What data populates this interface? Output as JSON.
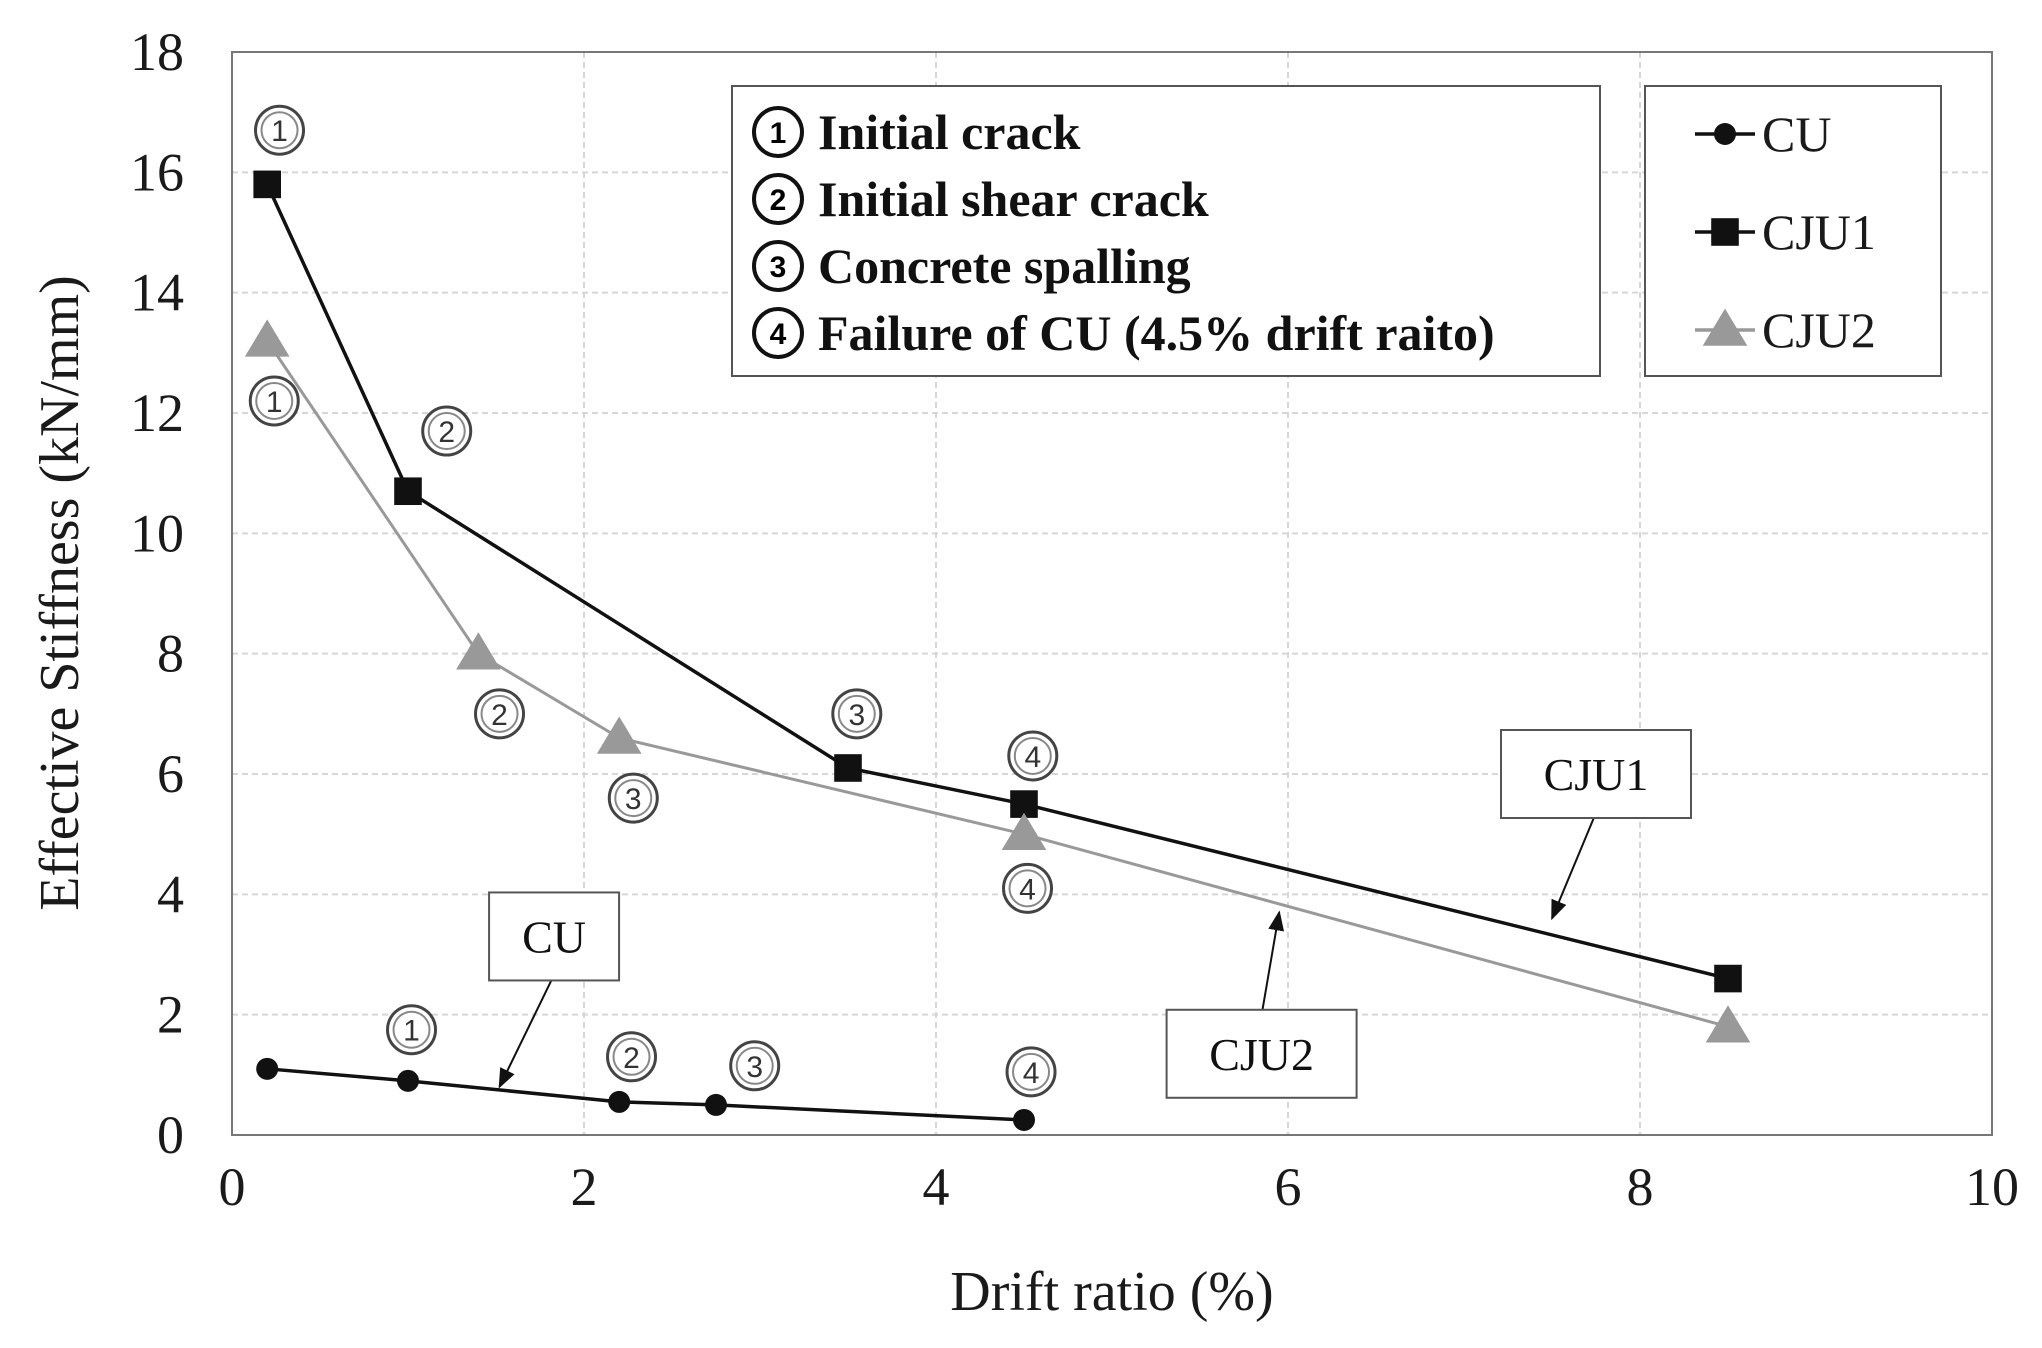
{
  "chart_data": {
    "type": "line",
    "title": "",
    "xlabel": "Drift ratio (%)",
    "ylabel": "Effective Stiffness (kN/mm)",
    "xlim": [
      0,
      10
    ],
    "ylim": [
      0,
      18
    ],
    "xticks": [
      "0",
      "2",
      "4",
      "6",
      "8",
      "10"
    ],
    "yticks": [
      "0",
      "2",
      "4",
      "6",
      "8",
      "10",
      "12",
      "14",
      "16",
      "18"
    ],
    "grid": true,
    "legend_position": "top-right",
    "series": [
      {
        "name": "CU",
        "marker": "circle",
        "color": "#111111",
        "x": [
          0.2,
          1.0,
          2.2,
          2.75,
          4.5
        ],
        "y": [
          1.1,
          0.9,
          0.55,
          0.5,
          0.25
        ]
      },
      {
        "name": "CJU1",
        "marker": "square",
        "color": "#111111",
        "x": [
          0.2,
          1.0,
          3.5,
          4.5,
          8.5
        ],
        "y": [
          15.8,
          10.7,
          6.1,
          5.5,
          2.6
        ]
      },
      {
        "name": "CJU2",
        "marker": "triangle",
        "color": "#999999",
        "x": [
          0.2,
          1.4,
          2.2,
          4.5,
          8.5
        ],
        "y": [
          13.2,
          8.0,
          6.6,
          5.0,
          1.8
        ]
      }
    ],
    "stage_notes": [
      {
        "num": "1",
        "text": "Initial crack"
      },
      {
        "num": "2",
        "text": "Initial shear crack"
      },
      {
        "num": "3",
        "text": "Concrete spalling"
      },
      {
        "num": "4",
        "text": "Failure of CU (4.5% drift raito)"
      }
    ],
    "point_annotations": [
      {
        "label": "1",
        "x": 0.27,
        "y": 16.7
      },
      {
        "label": "1",
        "x": 0.24,
        "y": 12.2
      },
      {
        "label": "2",
        "x": 1.22,
        "y": 11.7
      },
      {
        "label": "2",
        "x": 1.52,
        "y": 7.0
      },
      {
        "label": "3",
        "x": 3.55,
        "y": 7.0
      },
      {
        "label": "3",
        "x": 2.28,
        "y": 5.6
      },
      {
        "label": "4",
        "x": 4.55,
        "y": 6.3
      },
      {
        "label": "4",
        "x": 4.52,
        "y": 4.1
      },
      {
        "label": "1",
        "x": 1.02,
        "y": 1.75
      },
      {
        "label": "2",
        "x": 2.27,
        "y": 1.3
      },
      {
        "label": "3",
        "x": 2.97,
        "y": 1.15
      },
      {
        "label": "4",
        "x": 4.54,
        "y": 1.05
      }
    ],
    "callouts": [
      {
        "text": "CU",
        "x": 1.83,
        "y": 3.3,
        "arrow_to": [
          1.52,
          0.8
        ]
      },
      {
        "text": "CJU1",
        "x": 7.75,
        "y": 6.0,
        "arrow_to": [
          7.5,
          3.6
        ]
      },
      {
        "text": "CJU2",
        "x": 5.85,
        "y": 1.35,
        "arrow_to": [
          5.95,
          3.7
        ]
      }
    ]
  }
}
